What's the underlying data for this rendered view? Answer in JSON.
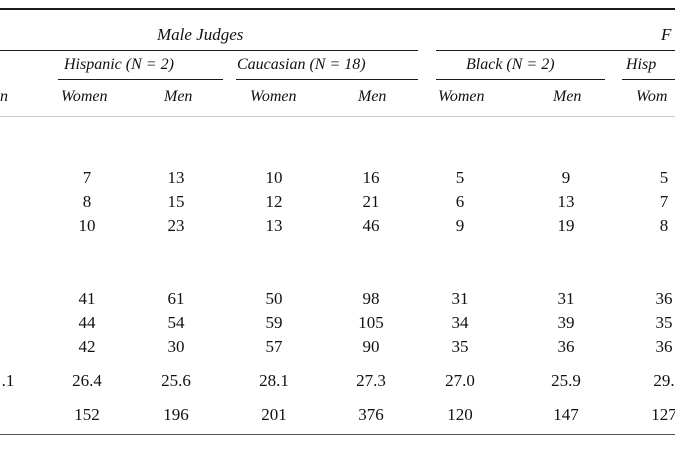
{
  "group_headers": {
    "male": "Male Judges",
    "female_fragment": "F"
  },
  "sub_headers": {
    "hispanic_male": "Hispanic (N = 2)",
    "caucasian_male": "Caucasian (N = 18)",
    "black_female": "Black (N = 2)",
    "hispanic_female_fragment": "Hisp"
  },
  "column_labels": {
    "men_fragment": "n",
    "women": "Women",
    "men": "Men",
    "women_fragment": "Wom"
  },
  "rows": [
    [
      "",
      "7",
      "13",
      "10",
      "16",
      "5",
      "9",
      "5"
    ],
    [
      "",
      "8",
      "15",
      "12",
      "21",
      "6",
      "13",
      "7"
    ],
    [
      "",
      "10",
      "23",
      "13",
      "46",
      "9",
      "19",
      "8"
    ],
    [
      "",
      "41",
      "61",
      "50",
      "98",
      "31",
      "31",
      "36"
    ],
    [
      "",
      "44",
      "54",
      "59",
      "105",
      "34",
      "39",
      "35"
    ],
    [
      "",
      "42",
      "30",
      "57",
      "90",
      "35",
      "36",
      "36"
    ],
    [
      ".1",
      "26.4",
      "25.6",
      "28.1",
      "27.3",
      "27.0",
      "25.9",
      "29."
    ],
    [
      "",
      "152",
      "196",
      "201",
      "376",
      "120",
      "147",
      "127"
    ]
  ]
}
